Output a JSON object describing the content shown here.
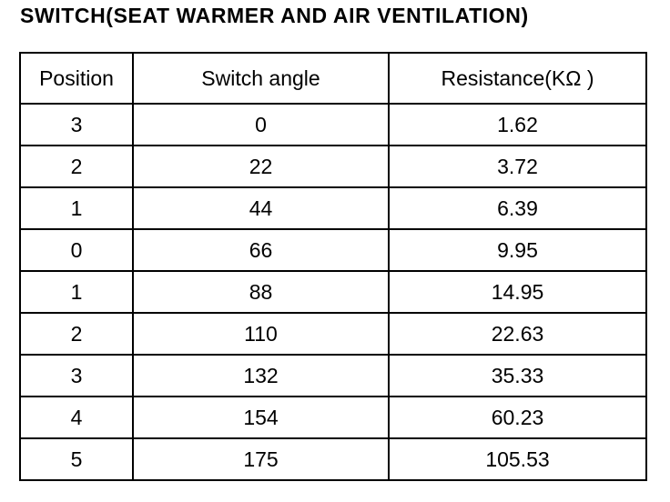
{
  "title": "SWITCH(SEAT WARMER AND AIR VENTILATION)",
  "table": {
    "headers": [
      "Position",
      "Switch angle",
      "Resistance(KΩ )"
    ],
    "rows": [
      {
        "position": "3",
        "angle": "0",
        "resistance": "1.62"
      },
      {
        "position": "2",
        "angle": "22",
        "resistance": "3.72"
      },
      {
        "position": "1",
        "angle": "44",
        "resistance": "6.39"
      },
      {
        "position": "0",
        "angle": "66",
        "resistance": "9.95"
      },
      {
        "position": "1",
        "angle": "88",
        "resistance": "14.95"
      },
      {
        "position": "2",
        "angle": "110",
        "resistance": "22.63"
      },
      {
        "position": "3",
        "angle": "132",
        "resistance": "35.33"
      },
      {
        "position": "4",
        "angle": "154",
        "resistance": "60.23"
      },
      {
        "position": "5",
        "angle": "175",
        "resistance": "105.53"
      }
    ]
  }
}
